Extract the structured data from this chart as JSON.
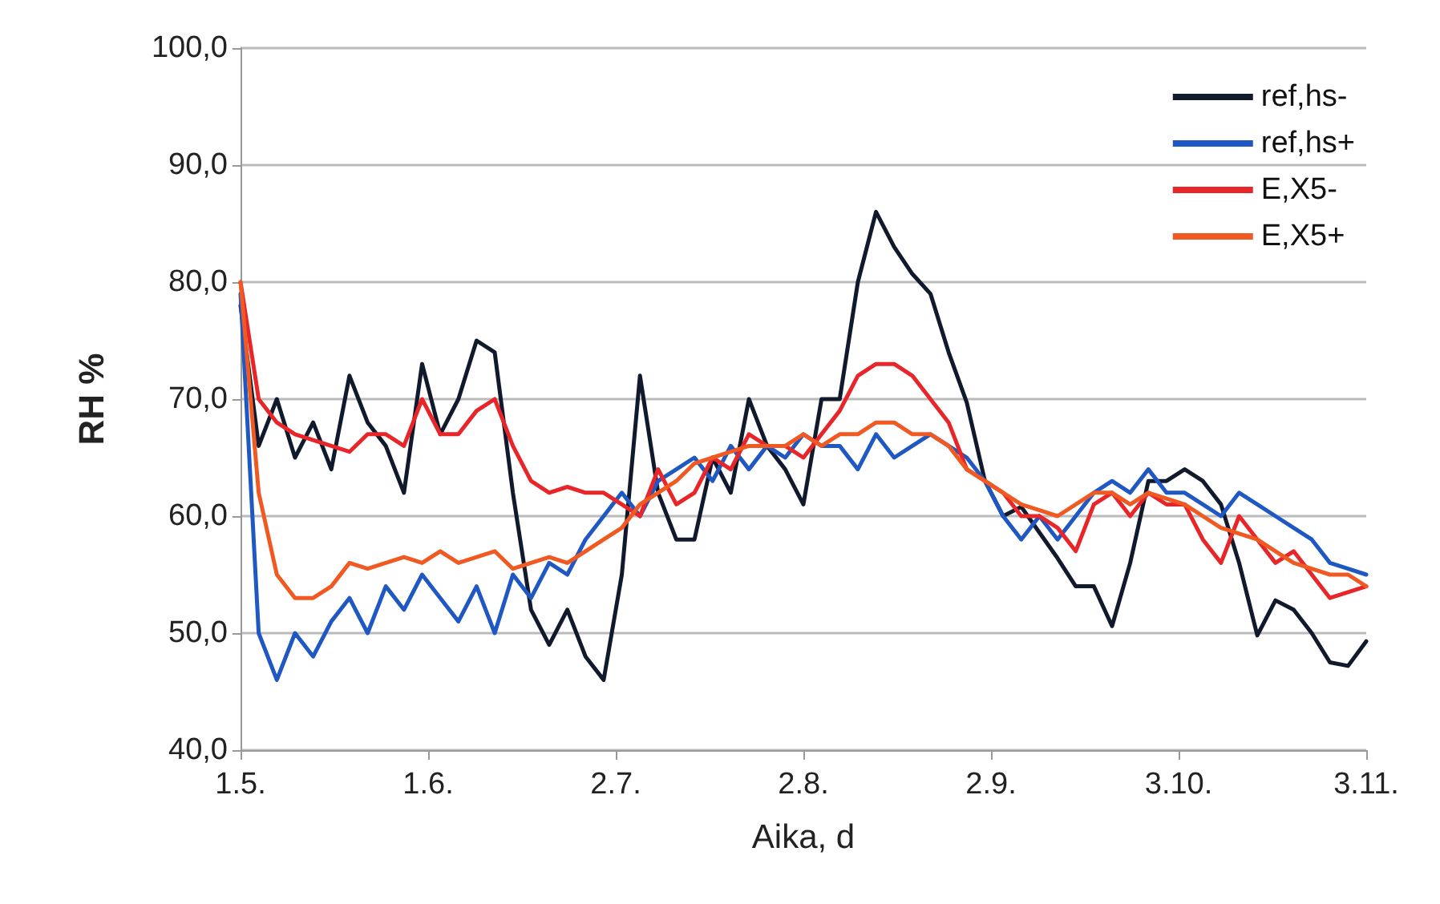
{
  "chart_data": {
    "type": "line",
    "xlabel": "Aika, d",
    "ylabel": "RH %",
    "x": [
      "--05-01",
      "--05-04",
      "--05-07",
      "--05-10",
      "--05-13",
      "--05-16",
      "--05-19",
      "--05-22",
      "--05-25",
      "--05-28",
      "--05-31",
      "--06-03",
      "--06-06",
      "--06-09",
      "--06-12",
      "--06-15",
      "--06-18",
      "--06-21",
      "--06-24",
      "--06-27",
      "--06-30",
      "--07-03",
      "--07-06",
      "--07-09",
      "--07-12",
      "--07-15",
      "--07-18",
      "--07-21",
      "--07-24",
      "--07-27",
      "--07-30",
      "--08-02",
      "--08-05",
      "--08-08",
      "--08-11",
      "--08-14",
      "--08-17",
      "--08-20",
      "--08-23",
      "--08-26",
      "--08-29",
      "--09-01",
      "--09-04",
      "--09-07",
      "--09-10",
      "--09-13",
      "--09-16",
      "--09-19",
      "--09-22",
      "--09-25",
      "--09-28",
      "--10-01",
      "--10-04",
      "--10-07",
      "--10-10",
      "--10-13",
      "--10-16",
      "--10-19",
      "--10-22",
      "--10-25",
      "--10-28",
      "--10-31",
      "--11-03"
    ],
    "series": [
      {
        "name": "ref,hs-",
        "color": "#111a2c",
        "values": [
          78,
          66,
          70,
          65,
          68,
          64,
          72,
          68,
          66,
          62,
          73,
          67,
          70,
          75,
          74,
          62,
          52,
          49,
          52,
          48,
          46,
          55,
          72,
          62,
          58,
          58,
          65,
          62,
          70,
          66,
          64,
          61,
          70,
          70,
          80,
          86,
          83,
          80.7,
          79,
          74,
          69.7,
          63,
          60,
          60.8,
          58.6,
          56.4,
          54,
          54,
          50.6,
          56,
          63,
          63,
          64,
          63,
          61,
          56,
          49.8,
          52.8,
          52,
          50,
          47.5,
          47.2,
          49.3
        ]
      },
      {
        "name": "ref,hs+",
        "color": "#1f57c3",
        "values": [
          79,
          50,
          46,
          50,
          48,
          51,
          53,
          50,
          54,
          52,
          55,
          53,
          51,
          54,
          50,
          55,
          53,
          56,
          55,
          58,
          60,
          62,
          60,
          63,
          64,
          65,
          63,
          66,
          64,
          66,
          65,
          67,
          66,
          66,
          64,
          67,
          65,
          66,
          67,
          66,
          65,
          63,
          60,
          58,
          60,
          58,
          60,
          62,
          63,
          62,
          64,
          62,
          62,
          61,
          60,
          62,
          61,
          60,
          59,
          58,
          56,
          55.5,
          55
        ]
      },
      {
        "name": "E,X5-",
        "color": "#e8262a",
        "values": [
          80,
          70,
          68,
          67,
          66.5,
          66,
          65.5,
          67,
          67,
          66,
          70,
          67,
          67,
          69,
          70,
          66,
          63,
          62,
          62.5,
          62,
          62,
          61,
          60,
          64,
          61,
          62,
          65,
          64,
          67,
          66,
          66,
          65,
          67,
          69,
          72,
          73,
          73,
          72,
          70,
          68,
          64,
          63,
          62,
          60,
          60,
          59,
          57,
          61,
          62,
          60,
          62,
          61,
          61,
          58,
          56,
          60,
          58,
          56,
          57,
          55,
          53,
          53.5,
          54
        ]
      },
      {
        "name": "E,X5+",
        "color": "#f05a22",
        "values": [
          80,
          62,
          55,
          53,
          53,
          54,
          56,
          55.5,
          56,
          56.5,
          56,
          57,
          56,
          56.5,
          57,
          55.5,
          56,
          56.5,
          56,
          57,
          58,
          59,
          61,
          62,
          63,
          64.5,
          65,
          65.5,
          66,
          66,
          66,
          67,
          66,
          67,
          67,
          68,
          68,
          67,
          67,
          66,
          64,
          63,
          62,
          61,
          60.5,
          60,
          61,
          62,
          62,
          61,
          62,
          61.5,
          61,
          60,
          59,
          58.5,
          58,
          57,
          56,
          55.5,
          55,
          55,
          54
        ]
      }
    ],
    "xlim": [
      "--05-01",
      "--11-03"
    ],
    "xticks": [
      {
        "value": "--05-01",
        "label": "1.5."
      },
      {
        "value": "--06-01",
        "label": "1.6."
      },
      {
        "value": "--07-02",
        "label": "2.7."
      },
      {
        "value": "--08-02",
        "label": "2.8."
      },
      {
        "value": "--09-02",
        "label": "2.9."
      },
      {
        "value": "--10-03",
        "label": "3.10."
      },
      {
        "value": "--11-03",
        "label": "3.11."
      }
    ],
    "ylim": [
      40,
      100
    ],
    "yticks": [
      {
        "value": 40,
        "label": "40,0"
      },
      {
        "value": 50,
        "label": "50,0"
      },
      {
        "value": 60,
        "label": "60,0"
      },
      {
        "value": 70,
        "label": "70,0"
      },
      {
        "value": 80,
        "label": "80,0"
      },
      {
        "value": 90,
        "label": "90,0"
      },
      {
        "value": 100,
        "label": "100,0"
      }
    ],
    "grid": "y",
    "legend": "top right",
    "marker": "none",
    "line_style": "solid"
  }
}
